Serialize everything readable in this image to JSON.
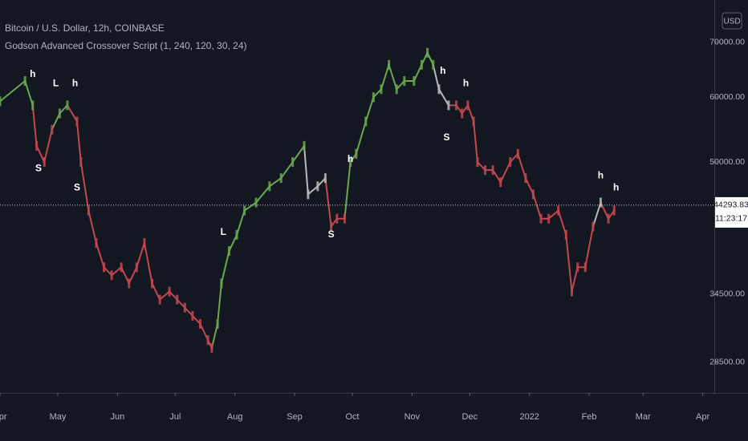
{
  "chart_data": {
    "type": "line",
    "title": "Bitcoin / U.S. Dollar, 12h, COINBASE",
    "subtitle": "Godson Advanced Crossover Script (1, 240, 120, 30, 24)",
    "currency": "USD",
    "current_price": 44293.83,
    "countdown": "11:23:17",
    "log_scale": true,
    "grid": false,
    "background": "#131722",
    "ylim": [
      26150,
      78800
    ],
    "yticks": [
      {
        "value": 28500,
        "label": "28500.00"
      },
      {
        "value": 34500,
        "label": "34500.00"
      },
      {
        "value": 50000,
        "label": "50000.00"
      },
      {
        "value": 60000,
        "label": "60000.00"
      },
      {
        "value": 70000,
        "label": "70000.00"
      }
    ],
    "xlim": [
      0,
      371
    ],
    "xticks": [
      {
        "value": 0,
        "label": "Apr"
      },
      {
        "value": 30,
        "label": "May"
      },
      {
        "value": 61,
        "label": "Jun"
      },
      {
        "value": 91,
        "label": "Jul"
      },
      {
        "value": 122,
        "label": "Aug"
      },
      {
        "value": 153,
        "label": "Sep"
      },
      {
        "value": 183,
        "label": "Oct"
      },
      {
        "value": 214,
        "label": "Nov"
      },
      {
        "value": 244,
        "label": "Dec"
      },
      {
        "value": 275,
        "label": "2022"
      },
      {
        "value": 306,
        "label": "Feb"
      },
      {
        "value": 334,
        "label": "Mar"
      },
      {
        "value": 365,
        "label": "Apr"
      }
    ],
    "x": [
      0,
      13,
      17,
      19,
      23,
      27,
      31,
      35,
      40,
      42,
      46,
      50,
      54,
      58,
      63,
      67,
      71,
      75,
      79,
      83,
      88,
      92,
      96,
      100,
      104,
      108,
      110,
      113,
      115,
      119,
      123,
      127,
      133,
      140,
      146,
      152,
      158,
      160,
      165,
      169,
      172,
      175,
      179,
      182,
      185,
      190,
      194,
      198,
      202,
      206,
      210,
      215,
      219,
      222,
      225,
      228,
      233,
      237,
      240,
      243,
      246,
      248,
      252,
      256,
      260,
      265,
      269,
      273,
      277,
      281,
      285,
      290,
      294,
      297,
      300,
      304,
      308,
      312,
      316,
      319
    ],
    "values": [
      59290,
      62770,
      58630,
      52330,
      50000,
      54760,
      57310,
      58630,
      56030,
      50000,
      43630,
      39840,
      37210,
      36380,
      37210,
      35560,
      37210,
      39840,
      35560,
      33980,
      34760,
      33980,
      33220,
      32470,
      31740,
      30330,
      29650,
      31740,
      35560,
      38950,
      40760,
      43630,
      44630,
      46710,
      47790,
      50000,
      52330,
      45660,
      46710,
      47790,
      41700,
      42650,
      42650,
      50000,
      51160,
      56030,
      59980,
      61340,
      65690,
      61340,
      62770,
      62770,
      65690,
      67960,
      65690,
      61340,
      58630,
      58630,
      57310,
      58630,
      56030,
      50000,
      48880,
      48880,
      47250,
      50000,
      51160,
      47790,
      45660,
      42650,
      42650,
      43630,
      40760,
      34760,
      37210,
      37210,
      41700,
      44630,
      42650,
      43630
    ],
    "colors": [
      "#6aa84f",
      "#6aa84f",
      "#6aa84f",
      "#c2484d",
      "#c2484d",
      "#c2484d",
      "#6aa84f",
      "#6aa84f",
      "#c2484d",
      "#c2484d",
      "#c2484d",
      "#c2484d",
      "#c2484d",
      "#c2484d",
      "#c2484d",
      "#c2484d",
      "#c2484d",
      "#c2484d",
      "#c2484d",
      "#c2484d",
      "#c2484d",
      "#c2484d",
      "#c2484d",
      "#c2484d",
      "#c2484d",
      "#c2484d",
      "#c2484d",
      "#6aa84f",
      "#6aa84f",
      "#6aa84f",
      "#6aa84f",
      "#6aa84f",
      "#6aa84f",
      "#6aa84f",
      "#6aa84f",
      "#6aa84f",
      "#6aa84f",
      "#b8b8b8",
      "#b8b8b8",
      "#b8b8b8",
      "#c2484d",
      "#c2484d",
      "#c2484d",
      "#6aa84f",
      "#6aa84f",
      "#6aa84f",
      "#6aa84f",
      "#6aa84f",
      "#6aa84f",
      "#6aa84f",
      "#6aa84f",
      "#6aa84f",
      "#6aa84f",
      "#6aa84f",
      "#6aa84f",
      "#b8b8b8",
      "#b8b8b8",
      "#c2484d",
      "#c2484d",
      "#c2484d",
      "#c2484d",
      "#c2484d",
      "#c2484d",
      "#c2484d",
      "#c2484d",
      "#c2484d",
      "#c2484d",
      "#c2484d",
      "#c2484d",
      "#c2484d",
      "#c2484d",
      "#c2484d",
      "#c2484d",
      "#c2484d",
      "#c2484d",
      "#c2484d",
      "#c2484d",
      "#b8b8b8",
      "#c2484d",
      "#c2484d"
    ],
    "annotations": [
      {
        "text": "h",
        "x": 17,
        "y": 63920
      },
      {
        "text": "L",
        "x": 29,
        "y": 62340
      },
      {
        "text": "h",
        "x": 39,
        "y": 62340
      },
      {
        "text": "S",
        "x": 20,
        "y": 49100
      },
      {
        "text": "S",
        "x": 40,
        "y": 46490
      },
      {
        "text": "L",
        "x": 116,
        "y": 41020
      },
      {
        "text": "S",
        "x": 172,
        "y": 40760
      },
      {
        "text": "h",
        "x": 182,
        "y": 50350
      },
      {
        "text": "h",
        "x": 230,
        "y": 64500
      },
      {
        "text": "S",
        "x": 232,
        "y": 53540
      },
      {
        "text": "h",
        "x": 242,
        "y": 62340
      },
      {
        "text": "h",
        "x": 312,
        "y": 48110
      },
      {
        "text": "h",
        "x": 320,
        "y": 46490
      }
    ]
  }
}
